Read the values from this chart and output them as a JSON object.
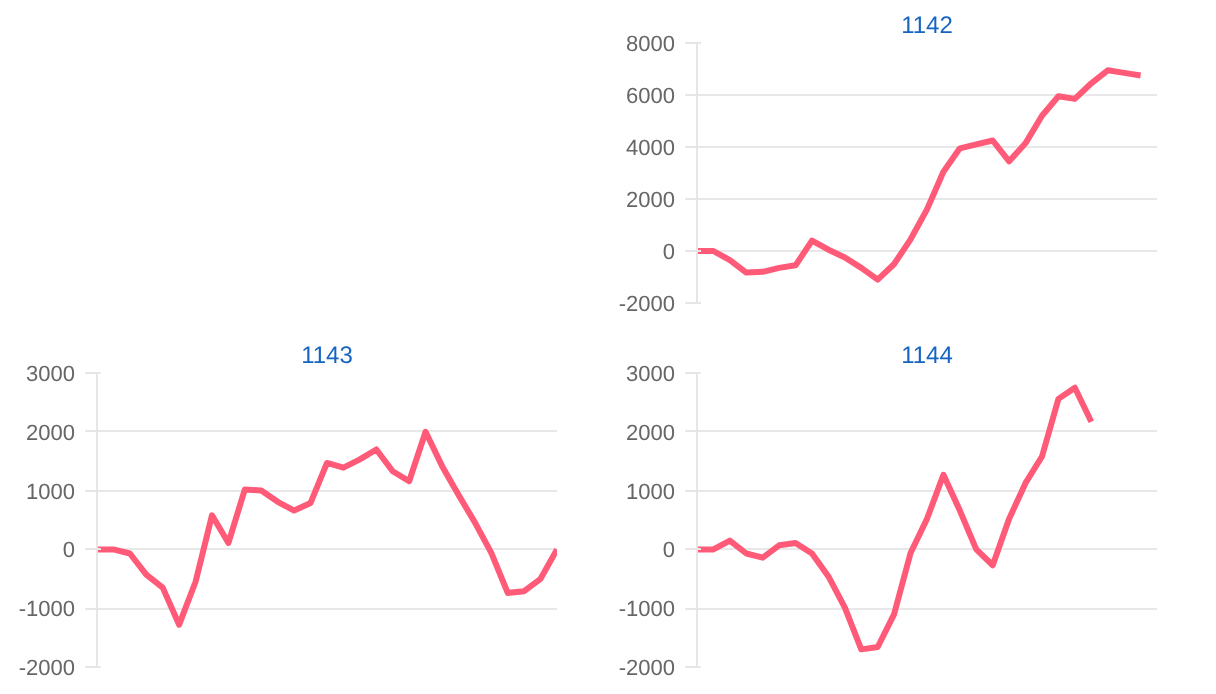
{
  "chart_data": [
    {
      "type": "line",
      "title": "1142",
      "color": "#ff5a78",
      "grid": "y",
      "tick_labels": "y",
      "ylim": [
        -2000,
        8000
      ],
      "yticks": [
        -2000,
        0,
        2000,
        4000,
        6000,
        8000
      ],
      "categories": [
        null,
        null,
        null,
        null,
        null,
        null,
        null,
        null,
        null,
        null,
        null,
        null,
        null,
        null,
        null,
        null,
        null,
        null,
        null,
        null,
        null,
        null,
        null,
        null,
        null,
        null,
        null,
        null,
        null
      ],
      "values": [
        0,
        0,
        -350,
        -830,
        -800,
        -650,
        -550,
        400,
        50,
        -250,
        -650,
        -1100,
        -500,
        450,
        1600,
        3050,
        3950,
        4100,
        4250,
        3450,
        4150,
        5200,
        5950,
        5850,
        6450,
        6950,
        6850,
        6750,
        null
      ]
    },
    {
      "type": "line",
      "title": "1143",
      "color": "#ff5a78",
      "grid": "y",
      "tick_labels": "y",
      "ylim": [
        -2000,
        3000
      ],
      "yticks": [
        -2000,
        -1000,
        0,
        1000,
        2000,
        3000
      ],
      "categories": [
        null,
        null,
        null,
        null,
        null,
        null,
        null,
        null,
        null,
        null,
        null,
        null,
        null,
        null,
        null,
        null,
        null,
        null,
        null,
        null,
        null,
        null,
        null,
        null,
        null,
        null,
        null,
        null,
        null
      ],
      "values": [
        0,
        0,
        -70,
        -430,
        -650,
        -1280,
        -550,
        580,
        110,
        1020,
        1000,
        810,
        660,
        790,
        1470,
        1390,
        1530,
        1700,
        1330,
        1160,
        2000,
        1420,
        930,
        460,
        -60,
        -740,
        -710,
        -500,
        0
      ]
    },
    {
      "type": "line",
      "title": "1144",
      "color": "#ff5a78",
      "grid": "y",
      "tick_labels": "y",
      "ylim": [
        -2000,
        3000
      ],
      "yticks": [
        -2000,
        -1000,
        0,
        1000,
        2000,
        3000
      ],
      "categories": [
        null,
        null,
        null,
        null,
        null,
        null,
        null,
        null,
        null,
        null,
        null,
        null,
        null,
        null,
        null,
        null,
        null,
        null,
        null,
        null,
        null,
        null,
        null,
        null,
        null,
        null,
        null,
        null,
        null
      ],
      "values": [
        0,
        0,
        150,
        -70,
        -140,
        70,
        110,
        -70,
        -460,
        -990,
        -1700,
        -1660,
        -1100,
        -60,
        520,
        1270,
        660,
        0,
        -270,
        520,
        1130,
        1580,
        2560,
        2750,
        2170,
        null,
        null,
        null,
        null
      ]
    }
  ]
}
